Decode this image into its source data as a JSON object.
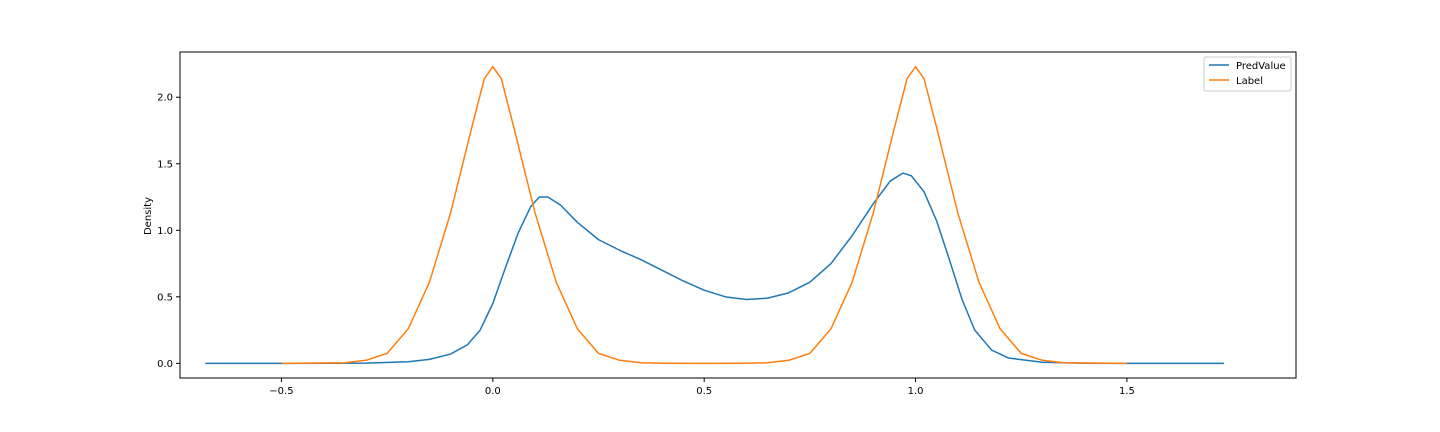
{
  "chart_data": {
    "type": "line",
    "title": "",
    "xlabel": "",
    "ylabel": "Density",
    "xlim": [
      -0.74,
      1.9
    ],
    "ylim": [
      -0.11,
      2.34
    ],
    "xticks": [
      -0.5,
      0.0,
      0.5,
      1.0,
      1.5
    ],
    "xtick_labels": [
      "−0.5",
      "0.0",
      "0.5",
      "1.0",
      "1.5"
    ],
    "yticks": [
      0.0,
      0.5,
      1.0,
      1.5,
      2.0
    ],
    "ytick_labels": [
      "0.0",
      "0.5",
      "1.0",
      "1.5",
      "2.0"
    ],
    "grid": false,
    "legend_position": "top-right",
    "series": [
      {
        "name": "PredValue",
        "color": "#1f77b4",
        "points": [
          [
            -0.68,
            0.0
          ],
          [
            -0.5,
            0.0
          ],
          [
            -0.3,
            0.002
          ],
          [
            -0.2,
            0.012
          ],
          [
            -0.15,
            0.03
          ],
          [
            -0.1,
            0.07
          ],
          [
            -0.06,
            0.14
          ],
          [
            -0.03,
            0.25
          ],
          [
            0.0,
            0.45
          ],
          [
            0.03,
            0.72
          ],
          [
            0.06,
            0.98
          ],
          [
            0.09,
            1.18
          ],
          [
            0.11,
            1.25
          ],
          [
            0.13,
            1.25
          ],
          [
            0.16,
            1.19
          ],
          [
            0.2,
            1.06
          ],
          [
            0.25,
            0.93
          ],
          [
            0.3,
            0.85
          ],
          [
            0.35,
            0.78
          ],
          [
            0.4,
            0.7
          ],
          [
            0.45,
            0.62
          ],
          [
            0.5,
            0.55
          ],
          [
            0.55,
            0.5
          ],
          [
            0.6,
            0.48
          ],
          [
            0.65,
            0.49
          ],
          [
            0.7,
            0.53
          ],
          [
            0.75,
            0.61
          ],
          [
            0.8,
            0.75
          ],
          [
            0.85,
            0.96
          ],
          [
            0.9,
            1.2
          ],
          [
            0.94,
            1.37
          ],
          [
            0.97,
            1.43
          ],
          [
            0.99,
            1.41
          ],
          [
            1.02,
            1.29
          ],
          [
            1.05,
            1.07
          ],
          [
            1.08,
            0.78
          ],
          [
            1.11,
            0.48
          ],
          [
            1.14,
            0.25
          ],
          [
            1.18,
            0.1
          ],
          [
            1.22,
            0.04
          ],
          [
            1.3,
            0.008
          ],
          [
            1.4,
            0.001
          ],
          [
            1.5,
            0.0
          ],
          [
            1.73,
            0.0
          ]
        ]
      },
      {
        "name": "Label",
        "color": "#ff7f0e",
        "points": [
          [
            -0.5,
            0.0
          ],
          [
            -0.35,
            0.005
          ],
          [
            -0.3,
            0.023
          ],
          [
            -0.25,
            0.075
          ],
          [
            -0.2,
            0.26
          ],
          [
            -0.15,
            0.61
          ],
          [
            -0.1,
            1.13
          ],
          [
            -0.05,
            1.77
          ],
          [
            -0.02,
            2.14
          ],
          [
            0.0,
            2.23
          ],
          [
            0.02,
            2.14
          ],
          [
            0.05,
            1.77
          ],
          [
            0.1,
            1.13
          ],
          [
            0.15,
            0.61
          ],
          [
            0.2,
            0.26
          ],
          [
            0.25,
            0.075
          ],
          [
            0.3,
            0.023
          ],
          [
            0.35,
            0.005
          ],
          [
            0.4,
            0.001
          ],
          [
            0.5,
            0.0
          ],
          [
            0.6,
            0.001
          ],
          [
            0.65,
            0.005
          ],
          [
            0.7,
            0.023
          ],
          [
            0.75,
            0.075
          ],
          [
            0.8,
            0.26
          ],
          [
            0.85,
            0.61
          ],
          [
            0.9,
            1.13
          ],
          [
            0.95,
            1.77
          ],
          [
            0.98,
            2.14
          ],
          [
            1.0,
            2.23
          ],
          [
            1.02,
            2.14
          ],
          [
            1.05,
            1.77
          ],
          [
            1.1,
            1.13
          ],
          [
            1.15,
            0.61
          ],
          [
            1.2,
            0.26
          ],
          [
            1.25,
            0.075
          ],
          [
            1.3,
            0.023
          ],
          [
            1.35,
            0.005
          ],
          [
            1.5,
            0.0
          ]
        ]
      }
    ]
  }
}
